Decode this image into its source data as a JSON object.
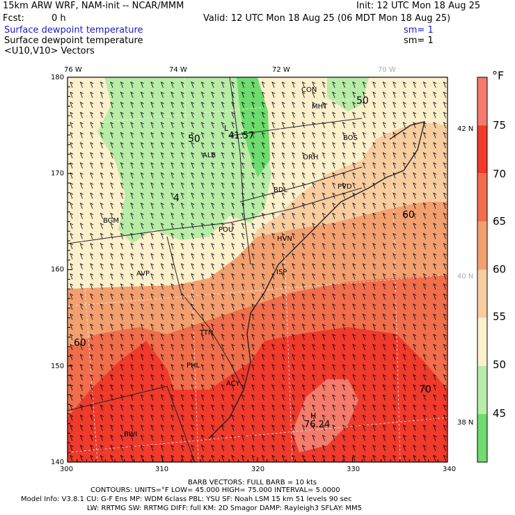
{
  "header": {
    "model": "15km ARW WRF, NAM-init -- NCAR/MMM",
    "init": "Init: 12 UTC Mon 18 Aug 25",
    "fcst_label": "Fcst:",
    "fcst_value": "0 h",
    "valid": "Valid: 12 UTC Mon 18 Aug 25 (06 MDT Mon 18 Aug 25)",
    "field1": "Surface dewpoint temperature",
    "field1_sm": "sm= 1",
    "field2": "Surface dewpoint temperature",
    "field2_sm": "sm= 1",
    "field3": "<U10,V10> Vectors"
  },
  "axes": {
    "top_lon_labels": [
      "76 W",
      "74 W",
      "72 W",
      "70 W"
    ],
    "right_lat_labels": [
      "42 N",
      "40 N",
      "38 N"
    ],
    "left_y_ticks": [
      "180",
      "170",
      "160",
      "150",
      "140"
    ],
    "bottom_x_ticks": [
      "300",
      "310",
      "320",
      "330",
      "340"
    ]
  },
  "colorbar": {
    "unit": "°F",
    "labels": [
      "75",
      "70",
      "65",
      "60",
      "55",
      "50",
      "45"
    ],
    "colors": [
      "#f47c6c",
      "#ef3a2c",
      "#f06e4c",
      "#f3a070",
      "#f8cda0",
      "#fdf0cc",
      "#b8eca8",
      "#6edc6e"
    ]
  },
  "map": {
    "contour_labels": [
      "50",
      "50",
      "4",
      "60",
      "60",
      "70",
      "41.57",
      "76.24"
    ],
    "extreme_markers": [
      "L",
      "H"
    ],
    "stations": [
      "CON",
      "MHT",
      "BOS",
      "ALB",
      "ORH",
      "PVD",
      "BDL",
      "BGM",
      "POU",
      "HVN",
      "AVP",
      "ISP",
      "TTN",
      "PHL",
      "ACY",
      "BWI"
    ]
  },
  "footer": {
    "barb": "BARB VECTORS:  FULL BARB = 10 kts",
    "contours": "CONTOURS:  UNITS=°F  LOW=  45.000       HIGH=  75.000       INTERVAL=   5.0000",
    "model_info": "Model Info: V3.8.1      CU: G-F Ens  MP: WDM 6class   PBL: YSU        SF: Noah LSM     15 km    51 levels    90 sec",
    "physics": "LW: RRTMG    SW: RRTMG   DIFF: full     KM: 2D Smagor  DAMP: Rayleigh3   SFLAY: MM5"
  }
}
